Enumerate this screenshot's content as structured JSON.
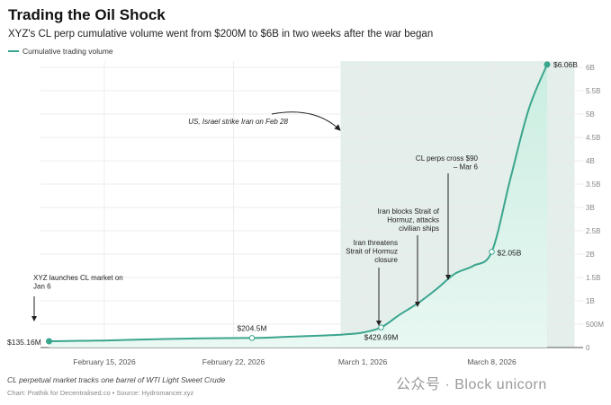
{
  "header": {
    "title": "Trading the Oil Shock",
    "subtitle": "XYZ's CL perp cumulative volume went from $200M to $6B in two weeks after the war began"
  },
  "footer": {
    "note": "CL perpetual market tracks one barrel of WTI Light Sweet Crude",
    "credit": "Chart: Prathik for Decentralised.co • Source: Hydromancer.xyz"
  },
  "watermark": "公众号 · Block unicorn",
  "chart_data": {
    "type": "area",
    "title": "Trading the Oil Shock",
    "legend": {
      "position": "top-left",
      "entries": [
        "Cumulative trading volume"
      ]
    },
    "colors": {
      "line": "#3aa58e",
      "fill": "#d9f3ea",
      "shade": "#e4eeeb"
    },
    "grid": true,
    "y_axis_position": "right",
    "xlim": [
      "2026-02-11",
      "2026-03-14"
    ],
    "ylim": [
      0,
      6000
    ],
    "y_unit": "millions USD",
    "x_ticks": [
      {
        "date": "2026-02-15",
        "label": "February 15, 2026"
      },
      {
        "date": "2026-02-22",
        "label": "February 22, 2026"
      },
      {
        "date": "2026-03-01",
        "label": "March 1, 2026"
      },
      {
        "date": "2026-03-08",
        "label": "March 8, 2026"
      }
    ],
    "y_ticks": [
      {
        "value": 0,
        "label": "0"
      },
      {
        "value": 500,
        "label": "500M"
      },
      {
        "value": 1000,
        "label": "1B"
      },
      {
        "value": 1500,
        "label": "1.5B"
      },
      {
        "value": 2000,
        "label": "2B"
      },
      {
        "value": 2500,
        "label": "2.5B"
      },
      {
        "value": 3000,
        "label": "3B"
      },
      {
        "value": 3500,
        "label": "3.5B"
      },
      {
        "value": 4000,
        "label": "4B"
      },
      {
        "value": 4500,
        "label": "4.5B"
      },
      {
        "value": 5000,
        "label": "5B"
      },
      {
        "value": 5500,
        "label": "5.5B"
      },
      {
        "value": 6000,
        "label": "6B"
      }
    ],
    "shaded_range": [
      "2026-02-28",
      "2026-03-12"
    ],
    "series": [
      {
        "name": "Cumulative trading volume",
        "points": [
          [
            "2026-02-12",
            135.16
          ],
          [
            "2026-02-13",
            140
          ],
          [
            "2026-02-14",
            145
          ],
          [
            "2026-02-15",
            150
          ],
          [
            "2026-02-16",
            160
          ],
          [
            "2026-02-17",
            170
          ],
          [
            "2026-02-18",
            180
          ],
          [
            "2026-02-19",
            188
          ],
          [
            "2026-02-20",
            195
          ],
          [
            "2026-02-21",
            200
          ],
          [
            "2026-02-22",
            203
          ],
          [
            "2026-02-23",
            204.5
          ],
          [
            "2026-02-24",
            215
          ],
          [
            "2026-02-25",
            230
          ],
          [
            "2026-02-26",
            245
          ],
          [
            "2026-02-27",
            260
          ],
          [
            "2026-02-28",
            280
          ],
          [
            "2026-03-01",
            320
          ],
          [
            "2026-03-02",
            429.69
          ],
          [
            "2026-03-03",
            700
          ],
          [
            "2026-03-04",
            950
          ],
          [
            "2026-03-05",
            1250
          ],
          [
            "2026-03-06",
            1580
          ],
          [
            "2026-03-07",
            1750
          ],
          [
            "2026-03-08",
            2050
          ],
          [
            "2026-03-09",
            3600
          ],
          [
            "2026-03-10",
            5100
          ],
          [
            "2026-03-11",
            6060
          ]
        ]
      }
    ],
    "data_labels": [
      {
        "date": "2026-02-12",
        "value": 135.16,
        "label": "$135.16M",
        "marker": "filled"
      },
      {
        "date": "2026-02-23",
        "value": 204.5,
        "label": "$204.5M",
        "marker": "hollow"
      },
      {
        "date": "2026-03-02",
        "value": 429.69,
        "label": "$429.69M",
        "marker": "hollow"
      },
      {
        "date": "2026-03-08",
        "value": 2050,
        "label": "$2.05B",
        "marker": "hollow"
      },
      {
        "date": "2026-03-11",
        "value": 6060,
        "label": "$6.06B",
        "marker": "filled"
      }
    ],
    "annotations": [
      {
        "lines": [
          "XYZ launches CL market on",
          "Jan 6"
        ]
      },
      {
        "lines": [
          "US, Israel strike Iran on Feb 28"
        ]
      },
      {
        "lines": [
          "Iran threatens",
          "Strait of Hormuz",
          "closure"
        ]
      },
      {
        "lines": [
          "Iran blocks Strait of",
          "Hormuz, attacks",
          "civilian ships"
        ]
      },
      {
        "lines": [
          "CL perps cross $90",
          "– Mar 6"
        ]
      }
    ]
  }
}
